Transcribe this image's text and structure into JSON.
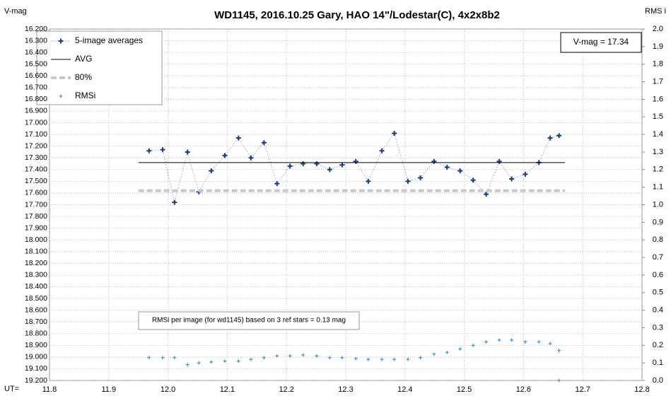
{
  "chart_data": {
    "type": "line",
    "title": "WD1145, 2016.10.25 Gary, HAO 14\"/Lodestar(C), 4x2x8b2",
    "y_label": "V-mag",
    "y2_label": "RMS i",
    "x_label": "UT=",
    "invert_y": true,
    "grid": true,
    "legend": "top-left",
    "xlim": [
      11.8,
      12.8
    ],
    "xticks": [
      11.8,
      11.9,
      {
        "value": 12.0,
        "label": "12.0"
      },
      12.1,
      12.2,
      12.3,
      12.4,
      12.5,
      12.6,
      12.7,
      12.8
    ],
    "ylim": [
      16.2,
      19.2
    ],
    "yticks": [
      {
        "value": 16.2,
        "label": "16.200"
      },
      {
        "value": 16.3,
        "label": "16.300"
      },
      {
        "value": 16.4,
        "label": "16.400"
      },
      {
        "value": 16.5,
        "label": "16.500"
      },
      {
        "value": 16.6,
        "label": "16.600"
      },
      {
        "value": 16.7,
        "label": "16.700"
      },
      {
        "value": 16.8,
        "label": "16.800"
      },
      {
        "value": 16.9,
        "label": "16.900"
      },
      {
        "value": 17.0,
        "label": "17.000"
      },
      {
        "value": 17.1,
        "label": "17.100"
      },
      {
        "value": 17.2,
        "label": "17.200"
      },
      {
        "value": 17.3,
        "label": "17.300"
      },
      {
        "value": 17.4,
        "label": "17.400"
      },
      {
        "value": 17.5,
        "label": "17.500"
      },
      {
        "value": 17.6,
        "label": "17.600"
      },
      {
        "value": 17.7,
        "label": "17.700"
      },
      {
        "value": 17.8,
        "label": "17.800"
      },
      {
        "value": 17.9,
        "label": "17.900"
      },
      {
        "value": 18.0,
        "label": "18.000"
      },
      {
        "value": 18.1,
        "label": "18.100"
      },
      {
        "value": 18.2,
        "label": "18.200"
      },
      {
        "value": 18.3,
        "label": "18.300"
      },
      {
        "value": 18.4,
        "label": "18.400"
      },
      {
        "value": 18.5,
        "label": "18.500"
      },
      {
        "value": 18.6,
        "label": "18.600"
      },
      {
        "value": 18.7,
        "label": "18.700"
      },
      {
        "value": 18.8,
        "label": "18.800"
      },
      {
        "value": 18.9,
        "label": "18.900"
      },
      {
        "value": 19.0,
        "label": "19.000"
      },
      {
        "value": 19.1,
        "label": "19.100"
      },
      {
        "value": 19.2,
        "label": "19.200"
      }
    ],
    "y2lim": [
      0,
      2
    ],
    "y2ticks": [
      {
        "value": 0,
        "label": "0.0"
      },
      0.1,
      0.2,
      0.3,
      0.4,
      0.5,
      0.6,
      0.7,
      0.8,
      0.9,
      {
        "value": 1,
        "label": "1.0"
      },
      1.1,
      1.2,
      1.3,
      1.4,
      1.5,
      1.6,
      1.7,
      1.8,
      1.9,
      {
        "value": 2,
        "label": "2.0"
      }
    ],
    "annotations": [
      "V-mag = 17.34",
      "RMSi per image (for wd1145) based on 3 ref stars = 0.13 mag"
    ],
    "series": [
      {
        "name": "5-image averages",
        "color": "#1f3b73",
        "style": "marker-dotted",
        "x": [
          11.968,
          11.991,
          12.011,
          12.033,
          12.052,
          12.073,
          12.096,
          12.119,
          12.14,
          12.162,
          12.184,
          12.206,
          12.228,
          12.251,
          12.273,
          12.294,
          12.317,
          12.338,
          12.361,
          12.382,
          12.405,
          12.426,
          12.449,
          12.471,
          12.493,
          12.515,
          12.537,
          12.559,
          12.58,
          12.603,
          12.626,
          12.645,
          12.66
        ],
        "values": [
          17.24,
          17.23,
          17.68,
          17.25,
          17.59,
          17.41,
          17.28,
          17.13,
          17.3,
          17.17,
          17.52,
          17.37,
          17.35,
          17.35,
          17.4,
          17.36,
          17.33,
          17.5,
          17.24,
          17.09,
          17.5,
          17.47,
          17.33,
          17.38,
          17.41,
          17.49,
          17.61,
          17.33,
          17.48,
          17.44,
          17.34,
          17.13,
          17.11
        ]
      },
      {
        "name": "AVG",
        "color": "#000000",
        "style": "solid",
        "x": [
          11.95,
          12.67
        ],
        "values": [
          17.34,
          17.34
        ]
      },
      {
        "name": "80%",
        "color": "#c8c8c8",
        "style": "dashed",
        "x": [
          11.95,
          12.67
        ],
        "values": [
          17.58,
          17.58
        ]
      },
      {
        "name": "RMSi",
        "color": "#2a8a9a",
        "style": "marker",
        "axis": "y2",
        "x": [
          11.968,
          11.991,
          12.011,
          12.033,
          12.052,
          12.073,
          12.096,
          12.119,
          12.14,
          12.162,
          12.184,
          12.206,
          12.228,
          12.251,
          12.273,
          12.294,
          12.317,
          12.338,
          12.361,
          12.382,
          12.405,
          12.426,
          12.449,
          12.471,
          12.493,
          12.515,
          12.537,
          12.559,
          12.58,
          12.603,
          12.626,
          12.645,
          12.66,
          12.66
        ],
        "values": [
          0.13,
          0.13,
          0.13,
          0.09,
          0.1,
          0.105,
          0.11,
          0.11,
          0.12,
          0.13,
          0.14,
          0.14,
          0.145,
          0.14,
          0.13,
          0.13,
          0.125,
          0.12,
          0.12,
          0.12,
          0.12,
          0.13,
          0.15,
          0.16,
          0.18,
          0.2,
          0.22,
          0.23,
          0.23,
          0.22,
          0.22,
          0.21,
          0.17,
          0.0
        ]
      }
    ]
  }
}
